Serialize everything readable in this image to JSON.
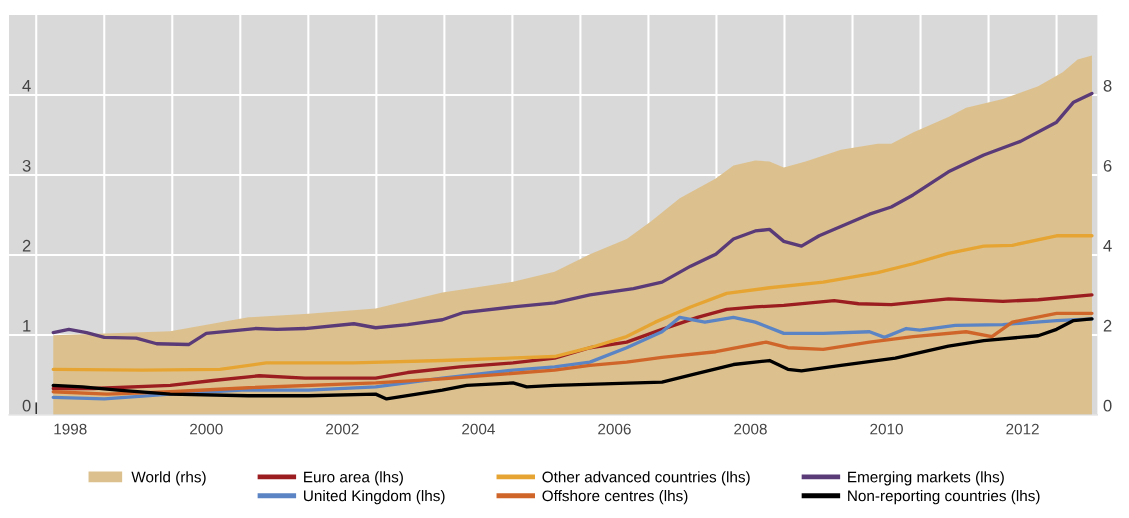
{
  "chart_data": {
    "type": "line",
    "xlim": [
      1997.6,
      2013.6
    ],
    "xticks": [
      {
        "value": 1998,
        "label": null
      },
      {
        "value": 1998.5,
        "label": "1998"
      },
      {
        "value": 1999,
        "label": null
      },
      {
        "value": 2000,
        "label": null
      },
      {
        "value": 2000.5,
        "label": "2000"
      },
      {
        "value": 2001,
        "label": null
      },
      {
        "value": 2002,
        "label": null
      },
      {
        "value": 2002.5,
        "label": "2002"
      },
      {
        "value": 2003,
        "label": null
      },
      {
        "value": 2004,
        "label": null
      },
      {
        "value": 2004.5,
        "label": "2004"
      },
      {
        "value": 2005,
        "label": null
      },
      {
        "value": 2006,
        "label": null
      },
      {
        "value": 2006.5,
        "label": "2006"
      },
      {
        "value": 2007,
        "label": null
      },
      {
        "value": 2008,
        "label": null
      },
      {
        "value": 2008.5,
        "label": "2008"
      },
      {
        "value": 2009,
        "label": null
      },
      {
        "value": 2010,
        "label": null
      },
      {
        "value": 2010.5,
        "label": "2010"
      },
      {
        "value": 2011,
        "label": null
      },
      {
        "value": 2012,
        "label": null
      },
      {
        "value": 2012.5,
        "label": "2012"
      },
      {
        "value": 2013,
        "label": null
      }
    ],
    "ylim": [
      0,
      5
    ],
    "yticks": [
      0,
      1,
      2,
      3,
      4
    ],
    "y2lim": [
      0,
      10
    ],
    "y2ticks": [
      0,
      2,
      4,
      6,
      8
    ],
    "grid": true,
    "legend": "bottom",
    "marker": "none",
    "line_style": "solid",
    "series": [
      {
        "name": "World (rhs)",
        "type": "area",
        "axis": "y2",
        "color": "#dcc18f",
        "x": [
          1998.25,
          1999.97,
          2001.12,
          2002.0,
          2002.99,
          2003.97,
          2005.01,
          2005.62,
          2006.14,
          2006.68,
          2007.04,
          2007.46,
          2007.99,
          2008.25,
          2008.57,
          2008.78,
          2008.99,
          2009.31,
          2009.83,
          2010.37,
          2010.57,
          2010.89,
          2011.41,
          2011.67,
          2012.21,
          2012.73,
          2013.09,
          2013.31,
          2013.52
        ],
        "values": [
          1.99,
          2.09,
          2.44,
          2.53,
          2.66,
          3.06,
          3.33,
          3.58,
          4.02,
          4.4,
          4.84,
          5.42,
          5.91,
          6.24,
          6.36,
          6.34,
          6.19,
          6.34,
          6.63,
          6.78,
          6.78,
          7.06,
          7.45,
          7.68,
          7.9,
          8.22,
          8.57,
          8.89,
          8.99
        ]
      },
      {
        "name": "Euro area (lhs)",
        "color": "#9b1d20",
        "x": [
          1998.25,
          1998.84,
          1999.97,
          2000.6,
          2001.28,
          2001.95,
          2002.99,
          2003.46,
          2004.23,
          2005.01,
          2005.62,
          2006.14,
          2006.68,
          2007.2,
          2007.72,
          2008.15,
          2008.57,
          2008.99,
          2009.73,
          2010.09,
          2010.57,
          2011.41,
          2012.21,
          2012.73,
          2013.52
        ],
        "values": [
          0.33,
          0.33,
          0.37,
          0.43,
          0.49,
          0.46,
          0.46,
          0.53,
          0.6,
          0.65,
          0.71,
          0.84,
          0.91,
          1.07,
          1.22,
          1.32,
          1.35,
          1.37,
          1.43,
          1.39,
          1.38,
          1.45,
          1.42,
          1.44,
          1.5
        ]
      },
      {
        "name": "United Kingdom (lhs)",
        "color": "#5b84c4",
        "x": [
          1998.25,
          1999.0,
          1999.97,
          2001.02,
          2002.0,
          2002.99,
          2003.97,
          2005.01,
          2005.62,
          2006.14,
          2006.68,
          2007.2,
          2007.46,
          2007.83,
          2008.25,
          2008.57,
          2008.99,
          2009.57,
          2010.25,
          2010.47,
          2010.79,
          2010.99,
          2011.51,
          2012.21,
          2013.0,
          2013.52
        ],
        "values": [
          0.22,
          0.2,
          0.26,
          0.31,
          0.31,
          0.35,
          0.46,
          0.56,
          0.6,
          0.66,
          0.84,
          1.04,
          1.22,
          1.16,
          1.22,
          1.16,
          1.02,
          1.02,
          1.04,
          0.97,
          1.08,
          1.06,
          1.12,
          1.13,
          1.18,
          1.2
        ]
      },
      {
        "name": "Other advanced countries (lhs)",
        "color": "#e6a532",
        "x": [
          1998.25,
          1999.57,
          2000.7,
          2001.38,
          2002.67,
          2003.97,
          2005.62,
          2006.14,
          2006.68,
          2007.1,
          2007.62,
          2008.15,
          2008.78,
          2009.57,
          2010.37,
          2010.89,
          2011.41,
          2011.93,
          2012.35,
          2013.0,
          2013.52
        ],
        "values": [
          0.57,
          0.56,
          0.57,
          0.65,
          0.65,
          0.68,
          0.73,
          0.84,
          0.98,
          1.16,
          1.35,
          1.52,
          1.59,
          1.66,
          1.78,
          1.89,
          2.02,
          2.11,
          2.12,
          2.24,
          2.24
        ]
      },
      {
        "name": "Offshore centres (lhs)",
        "color": "#d0652a",
        "x": [
          1998.25,
          1999.04,
          1999.97,
          2001.12,
          2002.99,
          2003.97,
          2005.62,
          2006.14,
          2006.68,
          2007.2,
          2007.99,
          2008.73,
          2009.05,
          2009.57,
          2010.25,
          2010.89,
          2011.67,
          2012.05,
          2012.35,
          2013.0,
          2013.52
        ],
        "values": [
          0.29,
          0.26,
          0.29,
          0.34,
          0.4,
          0.45,
          0.56,
          0.62,
          0.66,
          0.72,
          0.79,
          0.91,
          0.84,
          0.82,
          0.91,
          0.98,
          1.04,
          0.98,
          1.16,
          1.27,
          1.27
        ]
      },
      {
        "name": "Emerging markets (lhs)",
        "color": "#5b3a78",
        "x": [
          1998.25,
          1998.48,
          1998.74,
          1999.0,
          1999.47,
          1999.77,
          2000.24,
          2000.5,
          2001.22,
          2001.54,
          2001.95,
          2002.67,
          2002.99,
          2003.46,
          2003.97,
          2004.28,
          2005.01,
          2005.62,
          2006.14,
          2006.78,
          2007.2,
          2007.62,
          2007.99,
          2008.25,
          2008.57,
          2008.78,
          2008.99,
          2009.25,
          2009.51,
          2010.25,
          2010.57,
          2010.89,
          2011.41,
          2011.93,
          2012.47,
          2013.0,
          2013.25,
          2013.52
        ],
        "values": [
          1.03,
          1.07,
          1.03,
          0.97,
          0.96,
          0.89,
          0.88,
          1.02,
          1.08,
          1.07,
          1.08,
          1.14,
          1.09,
          1.13,
          1.19,
          1.28,
          1.35,
          1.4,
          1.5,
          1.58,
          1.66,
          1.86,
          2.01,
          2.2,
          2.3,
          2.32,
          2.17,
          2.11,
          2.24,
          2.51,
          2.6,
          2.75,
          3.04,
          3.25,
          3.42,
          3.66,
          3.91,
          4.02
        ]
      },
      {
        "name": "Non-reporting countries (lhs)",
        "color": "#000000",
        "x": [
          1998.25,
          1998.68,
          1999.2,
          1999.97,
          2001.12,
          2002.0,
          2002.99,
          2003.15,
          2003.97,
          2004.33,
          2005.01,
          2005.21,
          2005.62,
          2007.2,
          2007.72,
          2008.25,
          2008.78,
          2009.05,
          2009.25,
          2009.83,
          2010.63,
          2011.41,
          2011.93,
          2012.73,
          2013.0,
          2013.25,
          2013.52
        ],
        "values": [
          0.37,
          0.35,
          0.31,
          0.26,
          0.24,
          0.24,
          0.26,
          0.2,
          0.31,
          0.37,
          0.4,
          0.35,
          0.37,
          0.41,
          0.52,
          0.63,
          0.68,
          0.57,
          0.55,
          0.62,
          0.71,
          0.86,
          0.93,
          0.99,
          1.07,
          1.18,
          1.2
        ]
      }
    ]
  }
}
